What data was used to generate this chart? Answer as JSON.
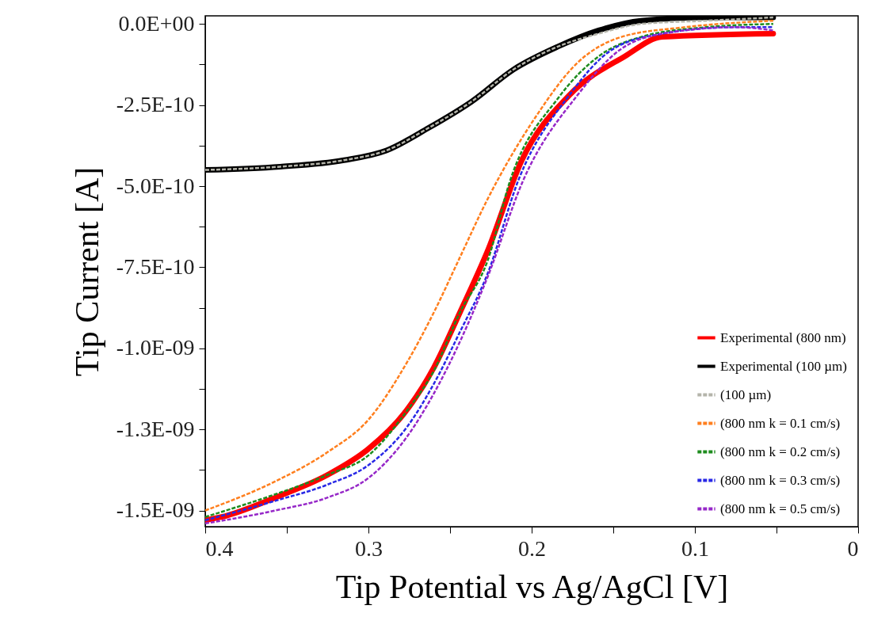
{
  "chart_data": {
    "type": "line",
    "xlabel": "Tip Potential vs Ag/AgCl [V]",
    "ylabel": "Tip Current [A]",
    "xlim": [
      0.4,
      0
    ],
    "xticks": [
      0.4,
      {
        "value": 0.35,
        "label": null
      },
      0.3,
      {
        "value": 0.25,
        "label": null
      },
      0.2,
      {
        "value": 0.15,
        "label": null
      },
      0.1,
      {
        "value": 0.05,
        "label": null
      },
      0
    ],
    "ylim": [
      -1.55e-09,
      2.5e-11
    ],
    "yticks": [
      {
        "value": 0,
        "label": "0.0E+00"
      },
      {
        "value": -1.25e-10,
        "label": null
      },
      {
        "value": -2.5e-10,
        "label": "-2.5E-10"
      },
      {
        "value": -3.75e-10,
        "label": null
      },
      {
        "value": -5e-10,
        "label": "-5.0E-10"
      },
      {
        "value": -6.25e-10,
        "label": null
      },
      {
        "value": -7.5e-10,
        "label": "-7.5E-10"
      },
      {
        "value": -8.75e-10,
        "label": null
      },
      {
        "value": -1e-09,
        "label": "-1.0E-09"
      },
      {
        "value": -1.125e-09,
        "label": null
      },
      {
        "value": -1.25e-09,
        "label": "-1.3E-09"
      },
      {
        "value": -1.375e-09,
        "label": null
      },
      {
        "value": -1.5e-09,
        "label": "-1.5E-09"
      }
    ],
    "grid": false,
    "legend": "bottom right",
    "marker": "none",
    "series": [
      {
        "name": "Experimental (800 nm)",
        "color": "#ff0000",
        "line_style": "solid",
        "x": [
          0.4,
          0.39,
          0.357,
          0.325,
          0.3,
          0.278,
          0.26,
          0.244,
          0.227,
          0.206,
          0.177,
          0.143,
          0.12,
          0.052
        ],
        "values": [
          -1.53e-09,
          -1.52e-09,
          -1.46e-09,
          -1.39e-09,
          -1.31e-09,
          -1.2e-09,
          -1.06e-09,
          -8.9e-10,
          -7e-10,
          -4.2e-10,
          -2.2e-10,
          -1e-10,
          -4e-11,
          -3e-11
        ]
      },
      {
        "name": "Experimental (100 µm)",
        "color": "#000000",
        "line_style": "solid",
        "x": [
          0.4,
          0.354,
          0.315,
          0.289,
          0.263,
          0.237,
          0.211,
          0.184,
          0.159,
          0.133,
          0.093,
          0.052
        ],
        "values": [
          -4.5e-10,
          -4.4e-10,
          -4.2e-10,
          -3.9e-10,
          -3.2e-10,
          -2.4e-10,
          -1.4e-10,
          -7e-11,
          -2e-11,
          1e-11,
          2e-11,
          2e-11
        ]
      },
      {
        "name": "(100 µm)",
        "color": "#b4b4aa",
        "line_style": "dashed",
        "x": [
          0.4,
          0.354,
          0.315,
          0.289,
          0.263,
          0.237,
          0.211,
          0.184,
          0.159,
          0.133,
          0.093,
          0.052
        ],
        "values": [
          -4.5e-10,
          -4.4e-10,
          -4.2e-10,
          -3.9e-10,
          -3.2e-10,
          -2.4e-10,
          -1.4e-10,
          -7e-11,
          -3e-11,
          0,
          1e-11,
          2e-11
        ]
      },
      {
        "name": "(800 nm k = 0.1 cm/s)",
        "color": "#ff7f1e",
        "line_style": "dashed",
        "x": [
          0.4,
          0.357,
          0.325,
          0.3,
          0.276,
          0.26,
          0.244,
          0.227,
          0.198,
          0.172,
          0.145,
          0.106,
          0.052
        ],
        "values": [
          -1.5e-09,
          -1.41e-09,
          -1.32e-09,
          -1.22e-09,
          -1.04e-09,
          -8.9e-10,
          -7.2e-10,
          -5.4e-10,
          -2.9e-10,
          -1.2e-10,
          -4e-11,
          -1e-11,
          1e-11
        ]
      },
      {
        "name": "(800 nm k = 0.2 cm/s)",
        "color": "#1e8c1e",
        "line_style": "dashed",
        "x": [
          0.4,
          0.357,
          0.325,
          0.3,
          0.276,
          0.26,
          0.244,
          0.227,
          0.213,
          0.184,
          0.159,
          0.133,
          0.093,
          0.052
        ],
        "values": [
          -1.52e-09,
          -1.45e-09,
          -1.39e-09,
          -1.33e-09,
          -1.19e-09,
          -1.07e-09,
          -8.9e-10,
          -7.3e-10,
          -4.8e-10,
          -2.3e-10,
          -1e-10,
          -4e-11,
          -1e-11,
          0
        ]
      },
      {
        "name": "(800 nm k = 0.3 cm/s)",
        "color": "#2828e6",
        "line_style": "dashed",
        "x": [
          0.4,
          0.357,
          0.325,
          0.3,
          0.276,
          0.26,
          0.244,
          0.227,
          0.208,
          0.177,
          0.151,
          0.12,
          0.075,
          0.052
        ],
        "values": [
          -1.53e-09,
          -1.47e-09,
          -1.42e-09,
          -1.36e-09,
          -1.24e-09,
          -1.11e-09,
          -9.5e-10,
          -7.7e-10,
          -4.8e-10,
          -2.2e-10,
          -8e-11,
          -3e-11,
          -1e-11,
          -1e-11
        ]
      },
      {
        "name": "(800 nm k = 0.5 cm/s)",
        "color": "#9628c8",
        "line_style": "dashed",
        "x": [
          0.4,
          0.357,
          0.325,
          0.3,
          0.276,
          0.26,
          0.244,
          0.227,
          0.205,
          0.172,
          0.146,
          0.12,
          0.075,
          0.052
        ],
        "values": [
          -1.54e-09,
          -1.5e-09,
          -1.46e-09,
          -1.4e-09,
          -1.27e-09,
          -1.14e-09,
          -9.8e-10,
          -7.8e-10,
          -4.8e-10,
          -2.2e-10,
          -8e-11,
          -3e-11,
          -1e-11,
          -2e-11
        ]
      }
    ]
  }
}
